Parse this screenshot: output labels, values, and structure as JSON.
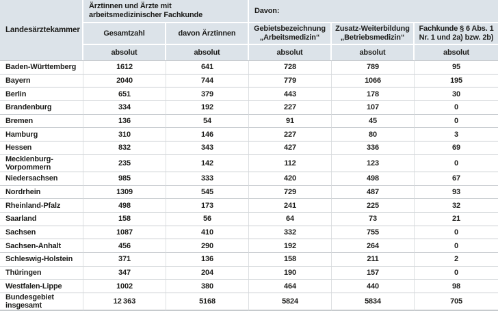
{
  "colors": {
    "header_bg": "#dce3e9",
    "header_separator": "#ffffff",
    "row_line": "#c9cdd1",
    "column_line": "#dcdfe1",
    "text": "#1c1c1a"
  },
  "table": {
    "row_header": "Landesärztekammer",
    "group_headers": [
      {
        "label": "Ärztinnen und Ärzte mit arbeitsmedizinischer Fachkunde",
        "span": 2
      },
      {
        "label": "Davon:",
        "span": 3
      }
    ],
    "column_headers": [
      "Gesamtzahl",
      "davon Ärztinnen",
      "Gebietsbezeichnung „Arbeitsmedizin“",
      "Zusatz-Weiterbildung „Betriebsmedizin“",
      "Fachkunde § 6 Abs. 1 Nr. 1 und 2a) bzw. 2b)"
    ],
    "unit_labels": [
      "absolut",
      "absolut",
      "absolut",
      "absolut",
      "absolut"
    ],
    "rows": [
      {
        "label": "Baden-Württemberg",
        "values": [
          "1612",
          "641",
          "728",
          "789",
          "95"
        ]
      },
      {
        "label": "Bayern",
        "values": [
          "2040",
          "744",
          "779",
          "1066",
          "195"
        ]
      },
      {
        "label": "Berlin",
        "values": [
          "651",
          "379",
          "443",
          "178",
          "30"
        ]
      },
      {
        "label": "Brandenburg",
        "values": [
          "334",
          "192",
          "227",
          "107",
          "0"
        ]
      },
      {
        "label": "Bremen",
        "values": [
          "136",
          "54",
          "91",
          "45",
          "0"
        ]
      },
      {
        "label": "Hamburg",
        "values": [
          "310",
          "146",
          "227",
          "80",
          "3"
        ]
      },
      {
        "label": "Hessen",
        "values": [
          "832",
          "343",
          "427",
          "336",
          "69"
        ]
      },
      {
        "label": "Mecklenburg-Vorpommern",
        "values": [
          "235",
          "142",
          "112",
          "123",
          "0"
        ]
      },
      {
        "label": "Niedersachsen",
        "values": [
          "985",
          "333",
          "420",
          "498",
          "67"
        ]
      },
      {
        "label": "Nordrhein",
        "values": [
          "1309",
          "545",
          "729",
          "487",
          "93"
        ]
      },
      {
        "label": "Rheinland-Pfalz",
        "values": [
          "498",
          "173",
          "241",
          "225",
          "32"
        ]
      },
      {
        "label": "Saarland",
        "values": [
          "158",
          "56",
          "64",
          "73",
          "21"
        ]
      },
      {
        "label": "Sachsen",
        "values": [
          "1087",
          "410",
          "332",
          "755",
          "0"
        ]
      },
      {
        "label": "Sachsen-Anhalt",
        "values": [
          "456",
          "290",
          "192",
          "264",
          "0"
        ]
      },
      {
        "label": "Schleswig-Holstein",
        "values": [
          "371",
          "136",
          "158",
          "211",
          "2"
        ]
      },
      {
        "label": "Thüringen",
        "values": [
          "347",
          "204",
          "190",
          "157",
          "0"
        ]
      },
      {
        "label": "Westfalen-Lippe",
        "values": [
          "1002",
          "380",
          "464",
          "440",
          "98"
        ]
      }
    ],
    "total_row": {
      "label": "Bundesgebiet insgesamt",
      "values": [
        "12 363",
        "5168",
        "5824",
        "5834",
        "705"
      ]
    }
  }
}
